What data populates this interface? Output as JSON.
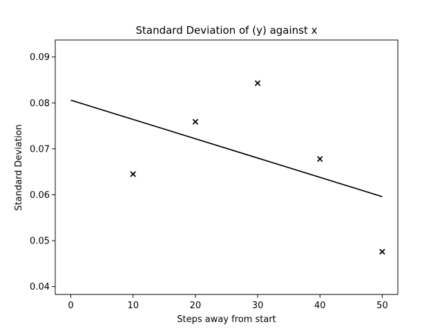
{
  "chart_data": {
    "type": "scatter",
    "title": "Standard Deviation of (y) against x",
    "xlabel": "Steps away from start",
    "ylabel": "Standard Deviation",
    "xlim": [
      -2.5,
      52.5
    ],
    "ylim": [
      0.0383,
      0.0937
    ],
    "x_ticks": [
      0,
      10,
      20,
      30,
      40,
      50
    ],
    "y_ticks": [
      0.04,
      0.05,
      0.06,
      0.07,
      0.08,
      0.09
    ],
    "grid": false,
    "series": [
      {
        "marker": "x",
        "color": "#000000",
        "points": [
          {
            "x": 10,
            "y": 0.0645
          },
          {
            "x": 20,
            "y": 0.0759
          },
          {
            "x": 30,
            "y": 0.0843
          },
          {
            "x": 40,
            "y": 0.0678
          },
          {
            "x": 50,
            "y": 0.0476
          }
        ]
      }
    ],
    "fit_line": {
      "color": "#000000",
      "points": [
        {
          "x": 0,
          "y": 0.0806
        },
        {
          "x": 50,
          "y": 0.0596
        }
      ]
    }
  }
}
